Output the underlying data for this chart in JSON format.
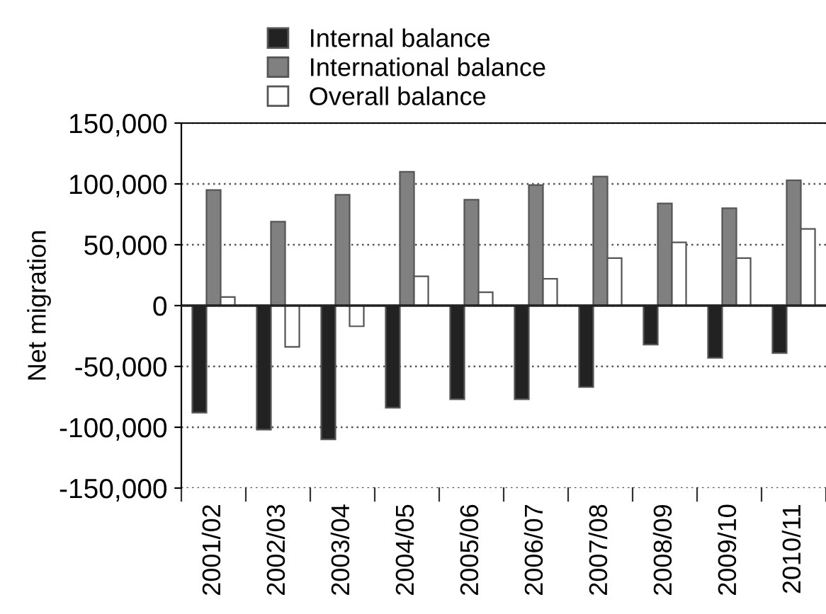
{
  "chart_data": {
    "type": "bar",
    "ylabel": "Net migration",
    "categories": [
      "2001/02",
      "2002/03",
      "2003/04",
      "2004/05",
      "2005/06",
      "2006/07",
      "2007/08",
      "2008/09",
      "2009/10",
      "2010/11"
    ],
    "series": [
      {
        "name": "Internal balance",
        "color": "#222222",
        "values": [
          -88000,
          -102000,
          -110000,
          -84000,
          -77000,
          -77000,
          -67000,
          -32000,
          -43000,
          -39000
        ]
      },
      {
        "name": "International balance",
        "color": "#808080",
        "values": [
          95000,
          69000,
          91000,
          110000,
          87000,
          99000,
          106000,
          84000,
          80000,
          103000
        ]
      },
      {
        "name": "Overall balance",
        "color": "#ffffff",
        "values": [
          7000,
          -34000,
          -17000,
          24000,
          11000,
          22000,
          39000,
          52000,
          39000,
          63000
        ]
      }
    ],
    "ylim": [
      -150000,
      150000
    ],
    "yticks": [
      {
        "value": -150000,
        "label": "-150,000"
      },
      {
        "value": -100000,
        "label": "-100,000"
      },
      {
        "value": -50000,
        "label": "-50,000"
      },
      0,
      {
        "value": 50000,
        "label": "50,000"
      },
      {
        "value": 100000,
        "label": "100,000"
      },
      {
        "value": 150000,
        "label": "150,000"
      }
    ],
    "grid": "y",
    "legend": "top"
  }
}
